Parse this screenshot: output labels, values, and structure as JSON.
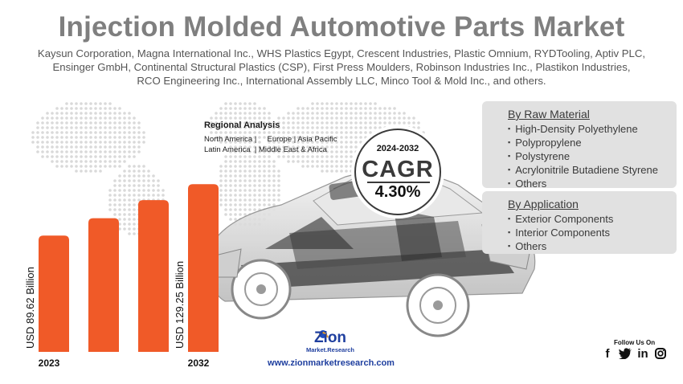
{
  "header": {
    "title": "Injection Molded Automotive Parts Market",
    "companies_line1": "Kaysun Corporation, Magna International Inc., WHS Plastics Egypt, Crescent Industries, Plastic Omnium, RYDTooling, Aptiv PLC,",
    "companies_line2": "Ensinger GmbH, Continental Structural Plastics (CSP), First Press Moulders, Robinson Industries Inc., Plastikon Industries,",
    "companies_line3": "RCO Engineering Inc., International Assembly LLC, Minco Tool & Mold Inc., and others."
  },
  "regional": {
    "heading": "Regional Analysis",
    "line1": "North America |     Europe | Asia Pacific",
    "line2": "Latin America  | Middle East & Africa"
  },
  "cagr": {
    "period": "2024-2032",
    "label": "CAGR",
    "value": "4.30%"
  },
  "chart_data": {
    "type": "bar",
    "categories": [
      "2023",
      "",
      "",
      "2032"
    ],
    "values": [
      89.62,
      103,
      117,
      129.25
    ],
    "value_labels": [
      "USD 89.62 Billion",
      "",
      "",
      "USD 129.25 Billion"
    ],
    "bar_color": "#f05a28",
    "ylim": [
      0,
      135
    ]
  },
  "raw_material": {
    "heading": "By Raw Material",
    "items": [
      "High-Density Polyethylene",
      "Polypropylene",
      "Polystyrene",
      "Acrylonitrile Butadiene Styrene",
      "Others"
    ]
  },
  "application": {
    "heading": "By Application",
    "items": [
      "Exterior Components",
      "Interior Components",
      "Others"
    ]
  },
  "footer": {
    "logo_text": "Zion",
    "logo_sub": "Market.Research",
    "website": "www.zionmarketresearch.com",
    "follow": "Follow Us On",
    "social": [
      "facebook-icon",
      "twitter-icon",
      "linkedin-icon",
      "instagram-icon"
    ]
  }
}
